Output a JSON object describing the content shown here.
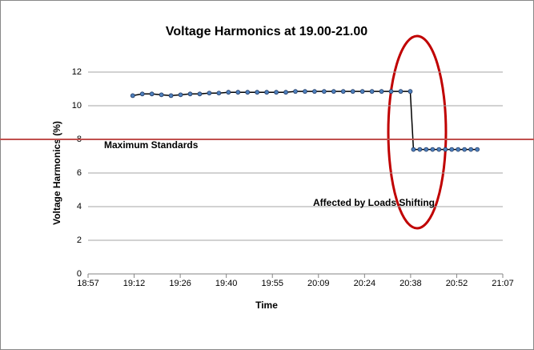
{
  "chart_data": {
    "type": "line",
    "title": "Voltage Harmonics at 19.00-21.00",
    "x_label": "Time",
    "y_label": "Voltage Harmonics (%)",
    "series": [
      {
        "name": "Voltage Harmonics",
        "color": "#4f81bd",
        "x": [
          1151,
          1154,
          1157,
          1160,
          1163,
          1166,
          1169,
          1172,
          1175,
          1178,
          1181,
          1184,
          1187,
          1190,
          1193,
          1196,
          1199,
          1202,
          1205,
          1208,
          1211,
          1214,
          1217,
          1220,
          1223,
          1226,
          1229,
          1232,
          1235,
          1238,
          1239,
          1241,
          1243,
          1245,
          1247,
          1249,
          1251,
          1253,
          1255,
          1257,
          1259
        ],
        "values": [
          10.6,
          10.7,
          10.7,
          10.65,
          10.6,
          10.65,
          10.7,
          10.7,
          10.75,
          10.75,
          10.8,
          10.8,
          10.8,
          10.8,
          10.8,
          10.8,
          10.8,
          10.85,
          10.85,
          10.85,
          10.85,
          10.85,
          10.85,
          10.85,
          10.85,
          10.85,
          10.85,
          10.85,
          10.85,
          10.85,
          7.4,
          7.4,
          7.4,
          7.4,
          7.4,
          7.4,
          7.4,
          7.4,
          7.4,
          7.4,
          7.4
        ]
      }
    ],
    "xlim": [
      1137,
      1267
    ],
    "xticks": [
      {
        "value": 1137,
        "label": "18:57"
      },
      {
        "value": 1151.44,
        "label": "19:12"
      },
      {
        "value": 1165.89,
        "label": "19:26"
      },
      {
        "value": 1180.33,
        "label": "19:40"
      },
      {
        "value": 1194.78,
        "label": "19:55"
      },
      {
        "value": 1209.22,
        "label": "20:09"
      },
      {
        "value": 1223.67,
        "label": "20:24"
      },
      {
        "value": 1238.11,
        "label": "20:38"
      },
      {
        "value": 1252.56,
        "label": "20:52"
      },
      {
        "value": 1267,
        "label": "21:07"
      }
    ],
    "ylim": [
      0,
      12
    ],
    "yticks": [
      0,
      2,
      4,
      6,
      8,
      10,
      12
    ],
    "grid": true,
    "reference_lines": [
      {
        "value": 8,
        "label": "Maximum Standards",
        "color": "#c0504d"
      }
    ],
    "annotations": [
      {
        "text": "Affected by Loads Shifting",
        "color": "#ff0000"
      }
    ]
  }
}
